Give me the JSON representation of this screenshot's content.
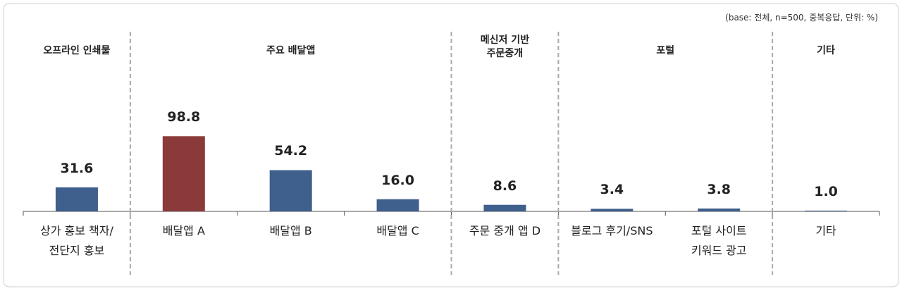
{
  "chart_data": {
    "type": "bar",
    "note": "(base: 전체, n=500, 중복응답, 단위: %)",
    "groups": [
      {
        "label": "오프라인 인쇄물",
        "count": 1
      },
      {
        "label": "주요 배달앱",
        "count": 3
      },
      {
        "label": "메신저 기반\n주문중개",
        "count": 1
      },
      {
        "label": "포털",
        "count": 2
      },
      {
        "label": "기타",
        "count": 1
      }
    ],
    "categories": [
      "상가 홍보 책자/\n전단지 홍보",
      "배달앱 A",
      "배달앱 B",
      "배달앱 C",
      "주문 중개 앱 D",
      "블로그 후기/SNS",
      "포털 사이트\n키워드 광고",
      "기타"
    ],
    "values": [
      31.6,
      98.8,
      54.2,
      16.0,
      8.6,
      3.4,
      3.8,
      1.0
    ],
    "value_labels": [
      "31.6",
      "98.8",
      "54.2",
      "16.0",
      "8.6",
      "3.4",
      "3.8",
      "1.0"
    ],
    "colors": [
      "#3f5f8c",
      "#8b3a3a",
      "#3f5f8c",
      "#3f5f8c",
      "#3f5f8c",
      "#3f5f8c",
      "#3f5f8c",
      "#3f5f8c"
    ],
    "ylim": [
      0,
      100
    ]
  }
}
